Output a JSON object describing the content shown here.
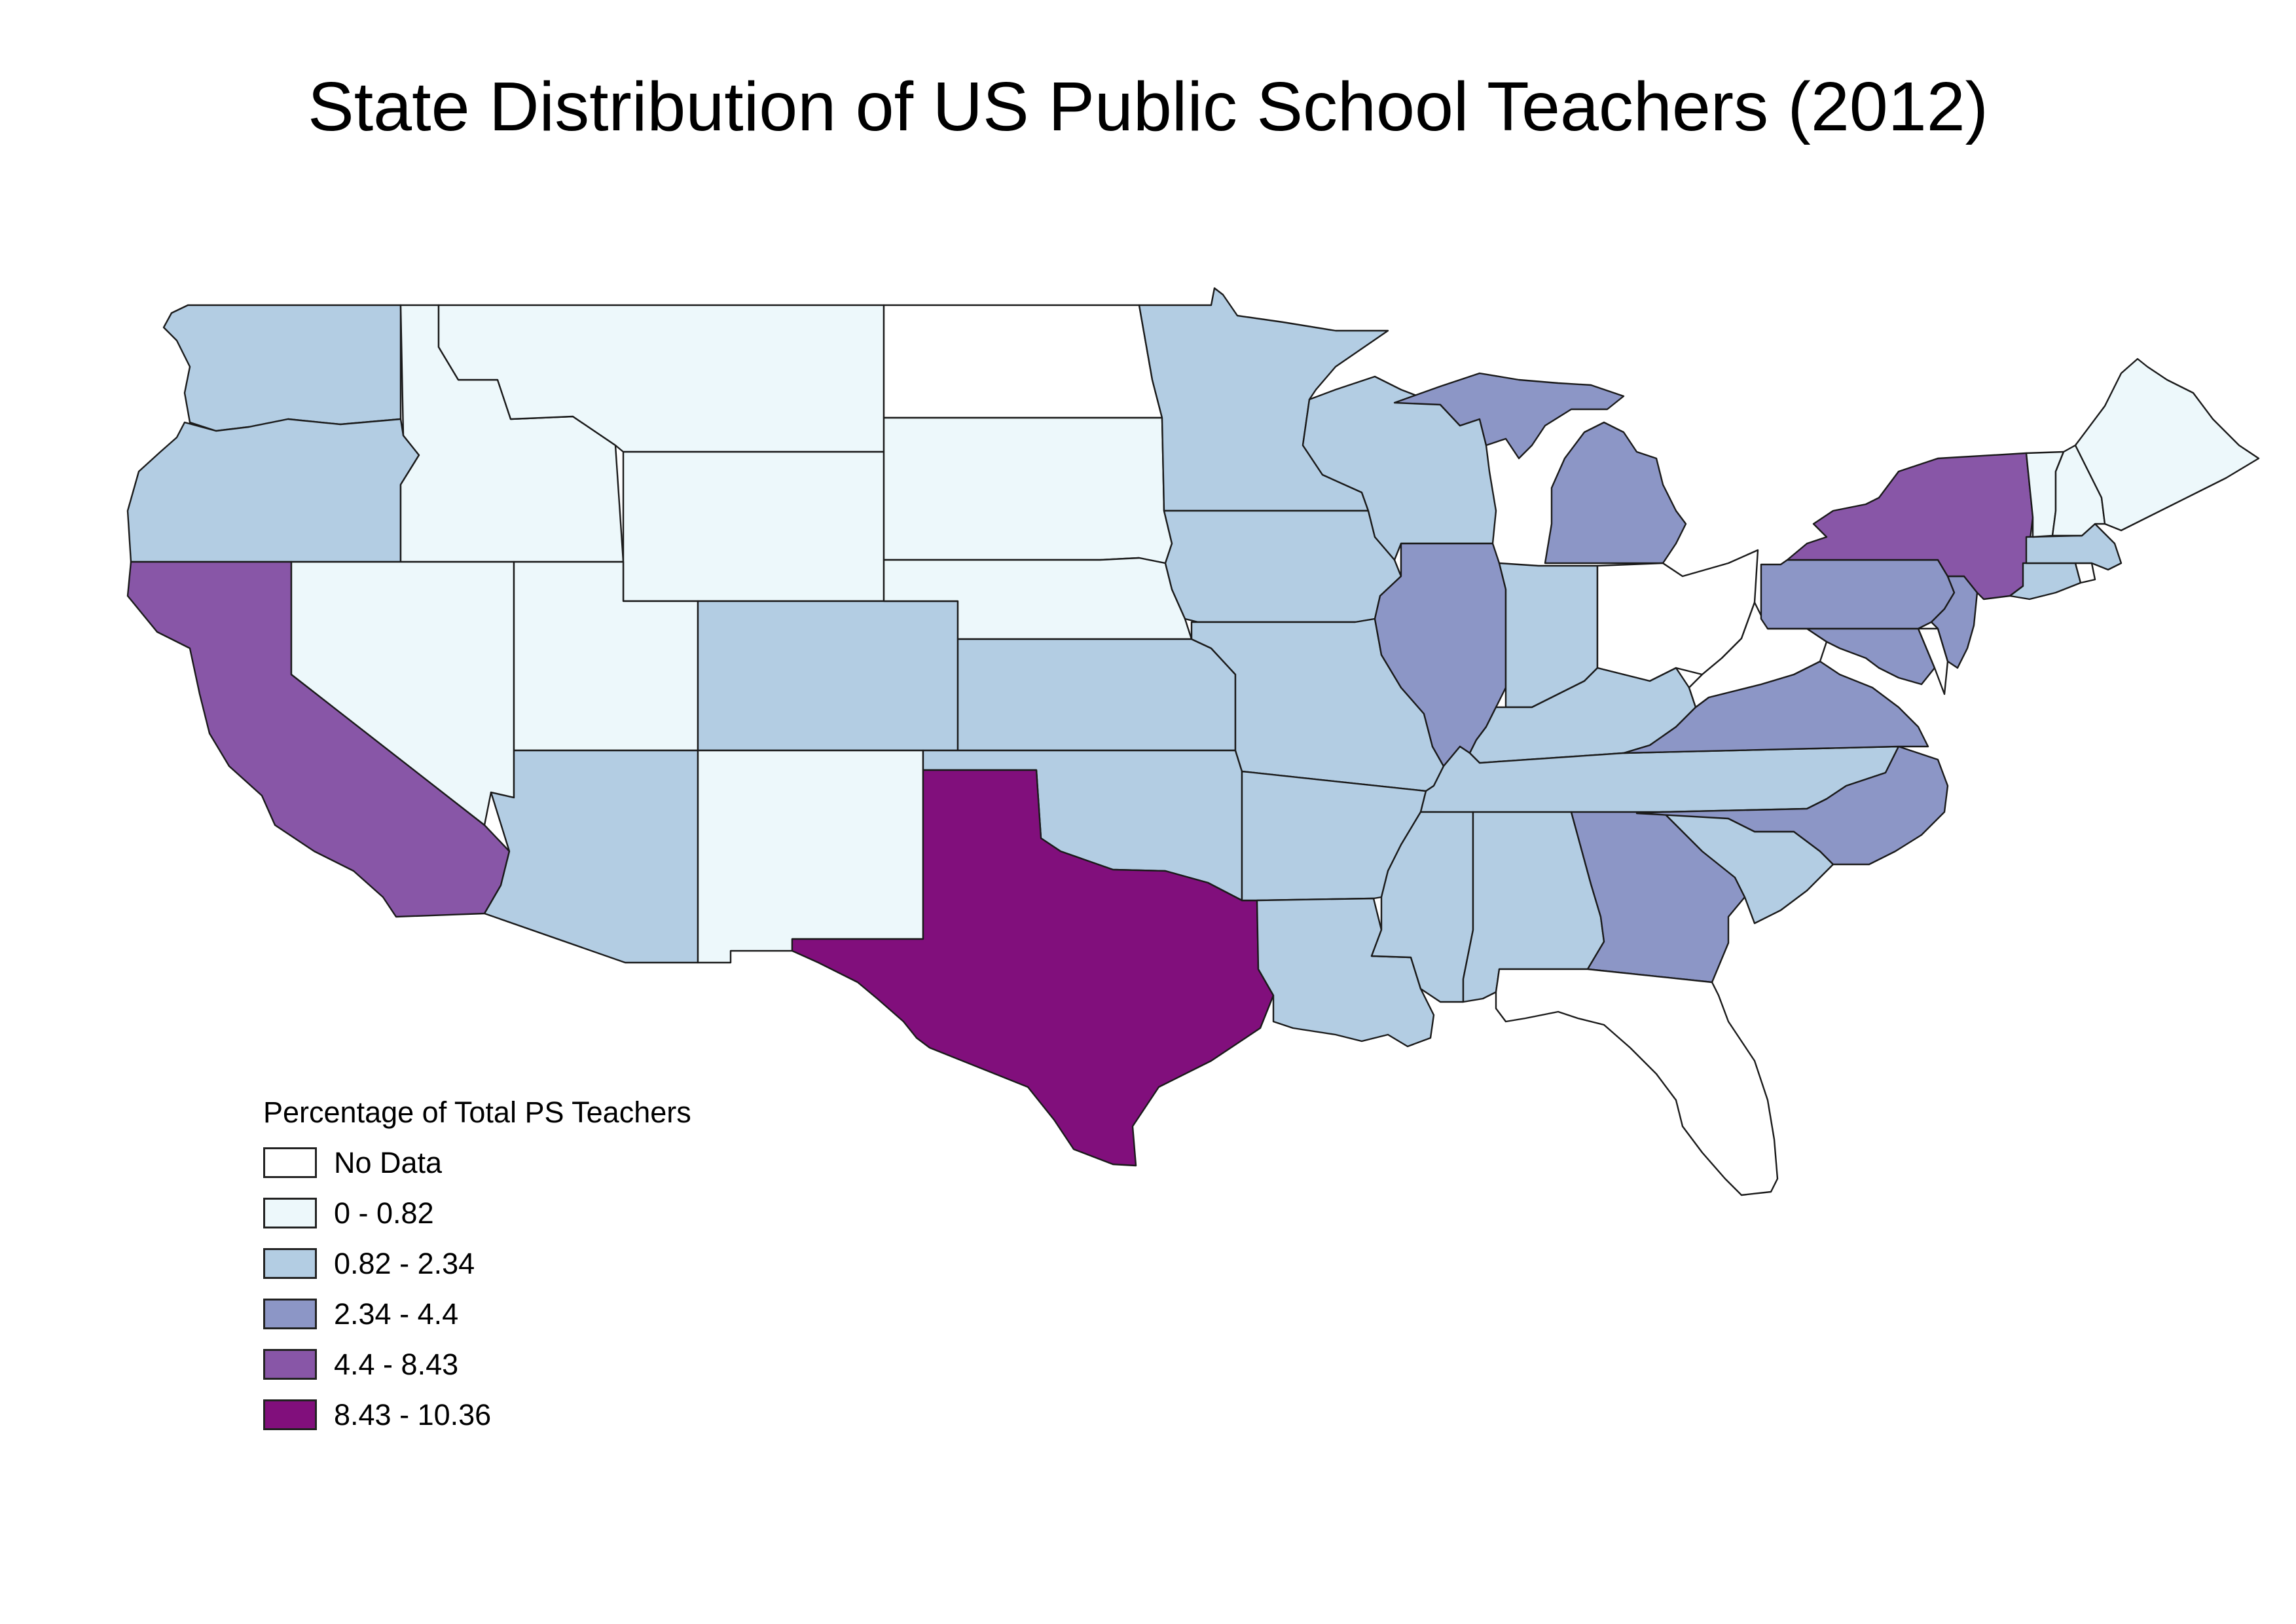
{
  "map": {
    "title": "State Distribution of US Public School Teachers (2012)",
    "subject": "US states choropleth",
    "outline_color": "#1a1a1a"
  },
  "legend": {
    "title": "Percentage of Total PS Teachers",
    "classes": [
      {
        "key": "nodata",
        "label": "No Data",
        "color": "#ffffff"
      },
      {
        "key": "c1",
        "label": "0 - 0.82",
        "color": "#edf8fb"
      },
      {
        "key": "c2",
        "label": "0.82 - 2.34",
        "color": "#b3cde3"
      },
      {
        "key": "c3",
        "label": "2.34 - 4.4",
        "color": "#8c96c6"
      },
      {
        "key": "c4",
        "label": "4.4 - 8.43",
        "color": "#8856a7"
      },
      {
        "key": "c5",
        "label": "8.43 - 10.36",
        "color": "#810f7c"
      }
    ]
  },
  "states": [
    {
      "id": "WA",
      "name": "Washington",
      "class": "c2"
    },
    {
      "id": "OR",
      "name": "Oregon",
      "class": "c2"
    },
    {
      "id": "CA",
      "name": "California",
      "class": "c4"
    },
    {
      "id": "ID",
      "name": "Idaho",
      "class": "c1"
    },
    {
      "id": "NV",
      "name": "Nevada",
      "class": "c1"
    },
    {
      "id": "MT",
      "name": "Montana",
      "class": "c1"
    },
    {
      "id": "WY",
      "name": "Wyoming",
      "class": "c1"
    },
    {
      "id": "UT",
      "name": "Utah",
      "class": "c1"
    },
    {
      "id": "AZ",
      "name": "Arizona",
      "class": "c2"
    },
    {
      "id": "CO",
      "name": "Colorado",
      "class": "c2"
    },
    {
      "id": "NM",
      "name": "New Mexico",
      "class": "c1"
    },
    {
      "id": "ND",
      "name": "North Dakota",
      "class": "nodata"
    },
    {
      "id": "SD",
      "name": "South Dakota",
      "class": "c1"
    },
    {
      "id": "NE",
      "name": "Nebraska",
      "class": "c1"
    },
    {
      "id": "KS",
      "name": "Kansas",
      "class": "c2"
    },
    {
      "id": "OK",
      "name": "Oklahoma",
      "class": "c2"
    },
    {
      "id": "TX",
      "name": "Texas",
      "class": "c5"
    },
    {
      "id": "MN",
      "name": "Minnesota",
      "class": "c2"
    },
    {
      "id": "IA",
      "name": "Iowa",
      "class": "c2"
    },
    {
      "id": "MO",
      "name": "Missouri",
      "class": "c2"
    },
    {
      "id": "AR",
      "name": "Arkansas",
      "class": "c2"
    },
    {
      "id": "LA",
      "name": "Louisiana",
      "class": "c2"
    },
    {
      "id": "WI",
      "name": "Wisconsin",
      "class": "c2"
    },
    {
      "id": "IL",
      "name": "Illinois",
      "class": "c3"
    },
    {
      "id": "MI",
      "name": "Michigan",
      "class": "c3"
    },
    {
      "id": "IN",
      "name": "Indiana",
      "class": "c2"
    },
    {
      "id": "OH",
      "name": "Ohio",
      "class": "nodata"
    },
    {
      "id": "KY",
      "name": "Kentucky",
      "class": "c2"
    },
    {
      "id": "TN",
      "name": "Tennessee",
      "class": "c2"
    },
    {
      "id": "MS",
      "name": "Mississippi",
      "class": "c2"
    },
    {
      "id": "AL",
      "name": "Alabama",
      "class": "c2"
    },
    {
      "id": "GA",
      "name": "Georgia",
      "class": "c3"
    },
    {
      "id": "FL",
      "name": "Florida",
      "class": "nodata"
    },
    {
      "id": "SC",
      "name": "South Carolina",
      "class": "c2"
    },
    {
      "id": "NC",
      "name": "North Carolina",
      "class": "c3"
    },
    {
      "id": "VA",
      "name": "Virginia",
      "class": "c3"
    },
    {
      "id": "WV",
      "name": "West Virginia",
      "class": "nodata"
    },
    {
      "id": "MD",
      "name": "Maryland",
      "class": "c3"
    },
    {
      "id": "DE",
      "name": "Delaware",
      "class": "nodata"
    },
    {
      "id": "PA",
      "name": "Pennsylvania",
      "class": "c3"
    },
    {
      "id": "NJ",
      "name": "New Jersey",
      "class": "c3"
    },
    {
      "id": "NY",
      "name": "New York",
      "class": "c4"
    },
    {
      "id": "CT",
      "name": "Connecticut",
      "class": "c2"
    },
    {
      "id": "RI",
      "name": "Rhode Island",
      "class": "nodata"
    },
    {
      "id": "MA",
      "name": "Massachusetts",
      "class": "c2"
    },
    {
      "id": "VT",
      "name": "Vermont",
      "class": "c1"
    },
    {
      "id": "NH",
      "name": "New Hampshire",
      "class": "c1"
    },
    {
      "id": "ME",
      "name": "Maine",
      "class": "c1"
    }
  ]
}
